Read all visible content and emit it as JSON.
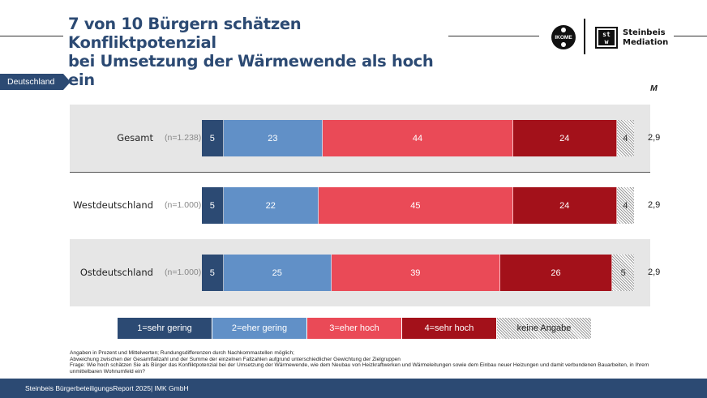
{
  "header": {
    "title_line1": "7 von 10 Bürgern schätzen Konfliktpotenzial",
    "title_line2": "bei Umsetzung der Wärmewende als hoch ein",
    "logo_ikome": "IKOME",
    "logo_stw_top": "st",
    "logo_stw_bottom": "w",
    "logo_steinbeis_line1": "Steinbeis",
    "logo_steinbeis_line2": "Mediation"
  },
  "region_tag": "Deutschland",
  "mean_header": "M",
  "colors": {
    "sehr_gering": "#2c4a73",
    "eher_gering": "#6190c7",
    "eher_hoch": "#ea4a57",
    "sehr_hoch": "#a3111a",
    "keine_angabe": "hatched-grey"
  },
  "chart_data": {
    "type": "bar",
    "orientation": "horizontal-stacked-100",
    "title": "7 von 10 Bürgern schätzen Konfliktpotenzial bei Umsetzung der Wärmewende als hoch ein",
    "unit": "Prozent",
    "categories": [
      "Gesamt",
      "Westdeutschland",
      "Ostdeutschland"
    ],
    "sample_sizes": [
      "(n=1.238)",
      "(n=1.000)",
      "(n=1.000)"
    ],
    "series": [
      {
        "name": "1=sehr gering",
        "values": [
          5,
          5,
          5
        ]
      },
      {
        "name": "2=eher gering",
        "values": [
          23,
          22,
          25
        ]
      },
      {
        "name": "3=eher hoch",
        "values": [
          44,
          45,
          39
        ]
      },
      {
        "name": "4=sehr hoch",
        "values": [
          24,
          24,
          26
        ]
      },
      {
        "name": "keine Angabe",
        "values": [
          4,
          4,
          5
        ]
      }
    ],
    "means": [
      "2,9",
      "2,9",
      "2,9"
    ],
    "legend_position": "bottom"
  },
  "legend": [
    "1=sehr gering",
    "2=eher gering",
    "3=eher hoch",
    "4=sehr hoch",
    "keine Angabe"
  ],
  "notes": [
    "Angaben in Prozent und Mittelwerten; Rundungsdifferenzen durch Nachkommastellen möglich;",
    "Abweichung zwischen der Gesamtfallzahl und der Summe der einzelnen Fallzahlen aufgrund unterschiedlicher Gewichtung der Zielgruppen",
    "Frage: Wie hoch schätzen Sie als Bürger das Konfliktpotenzial bei der Umsetzung der Wärmewende, wie dem Neubau von Heizkraftwerken und Wärmeleitungen sowie dem Einbau neuer Heizungen und damit verbundenen Bauarbeiten, in Ihrem unmittelbaren Wohnumfeld ein?"
  ],
  "footer": "Steinbeis BürgerbeteiligungsReport 2025| IMK GmbH"
}
